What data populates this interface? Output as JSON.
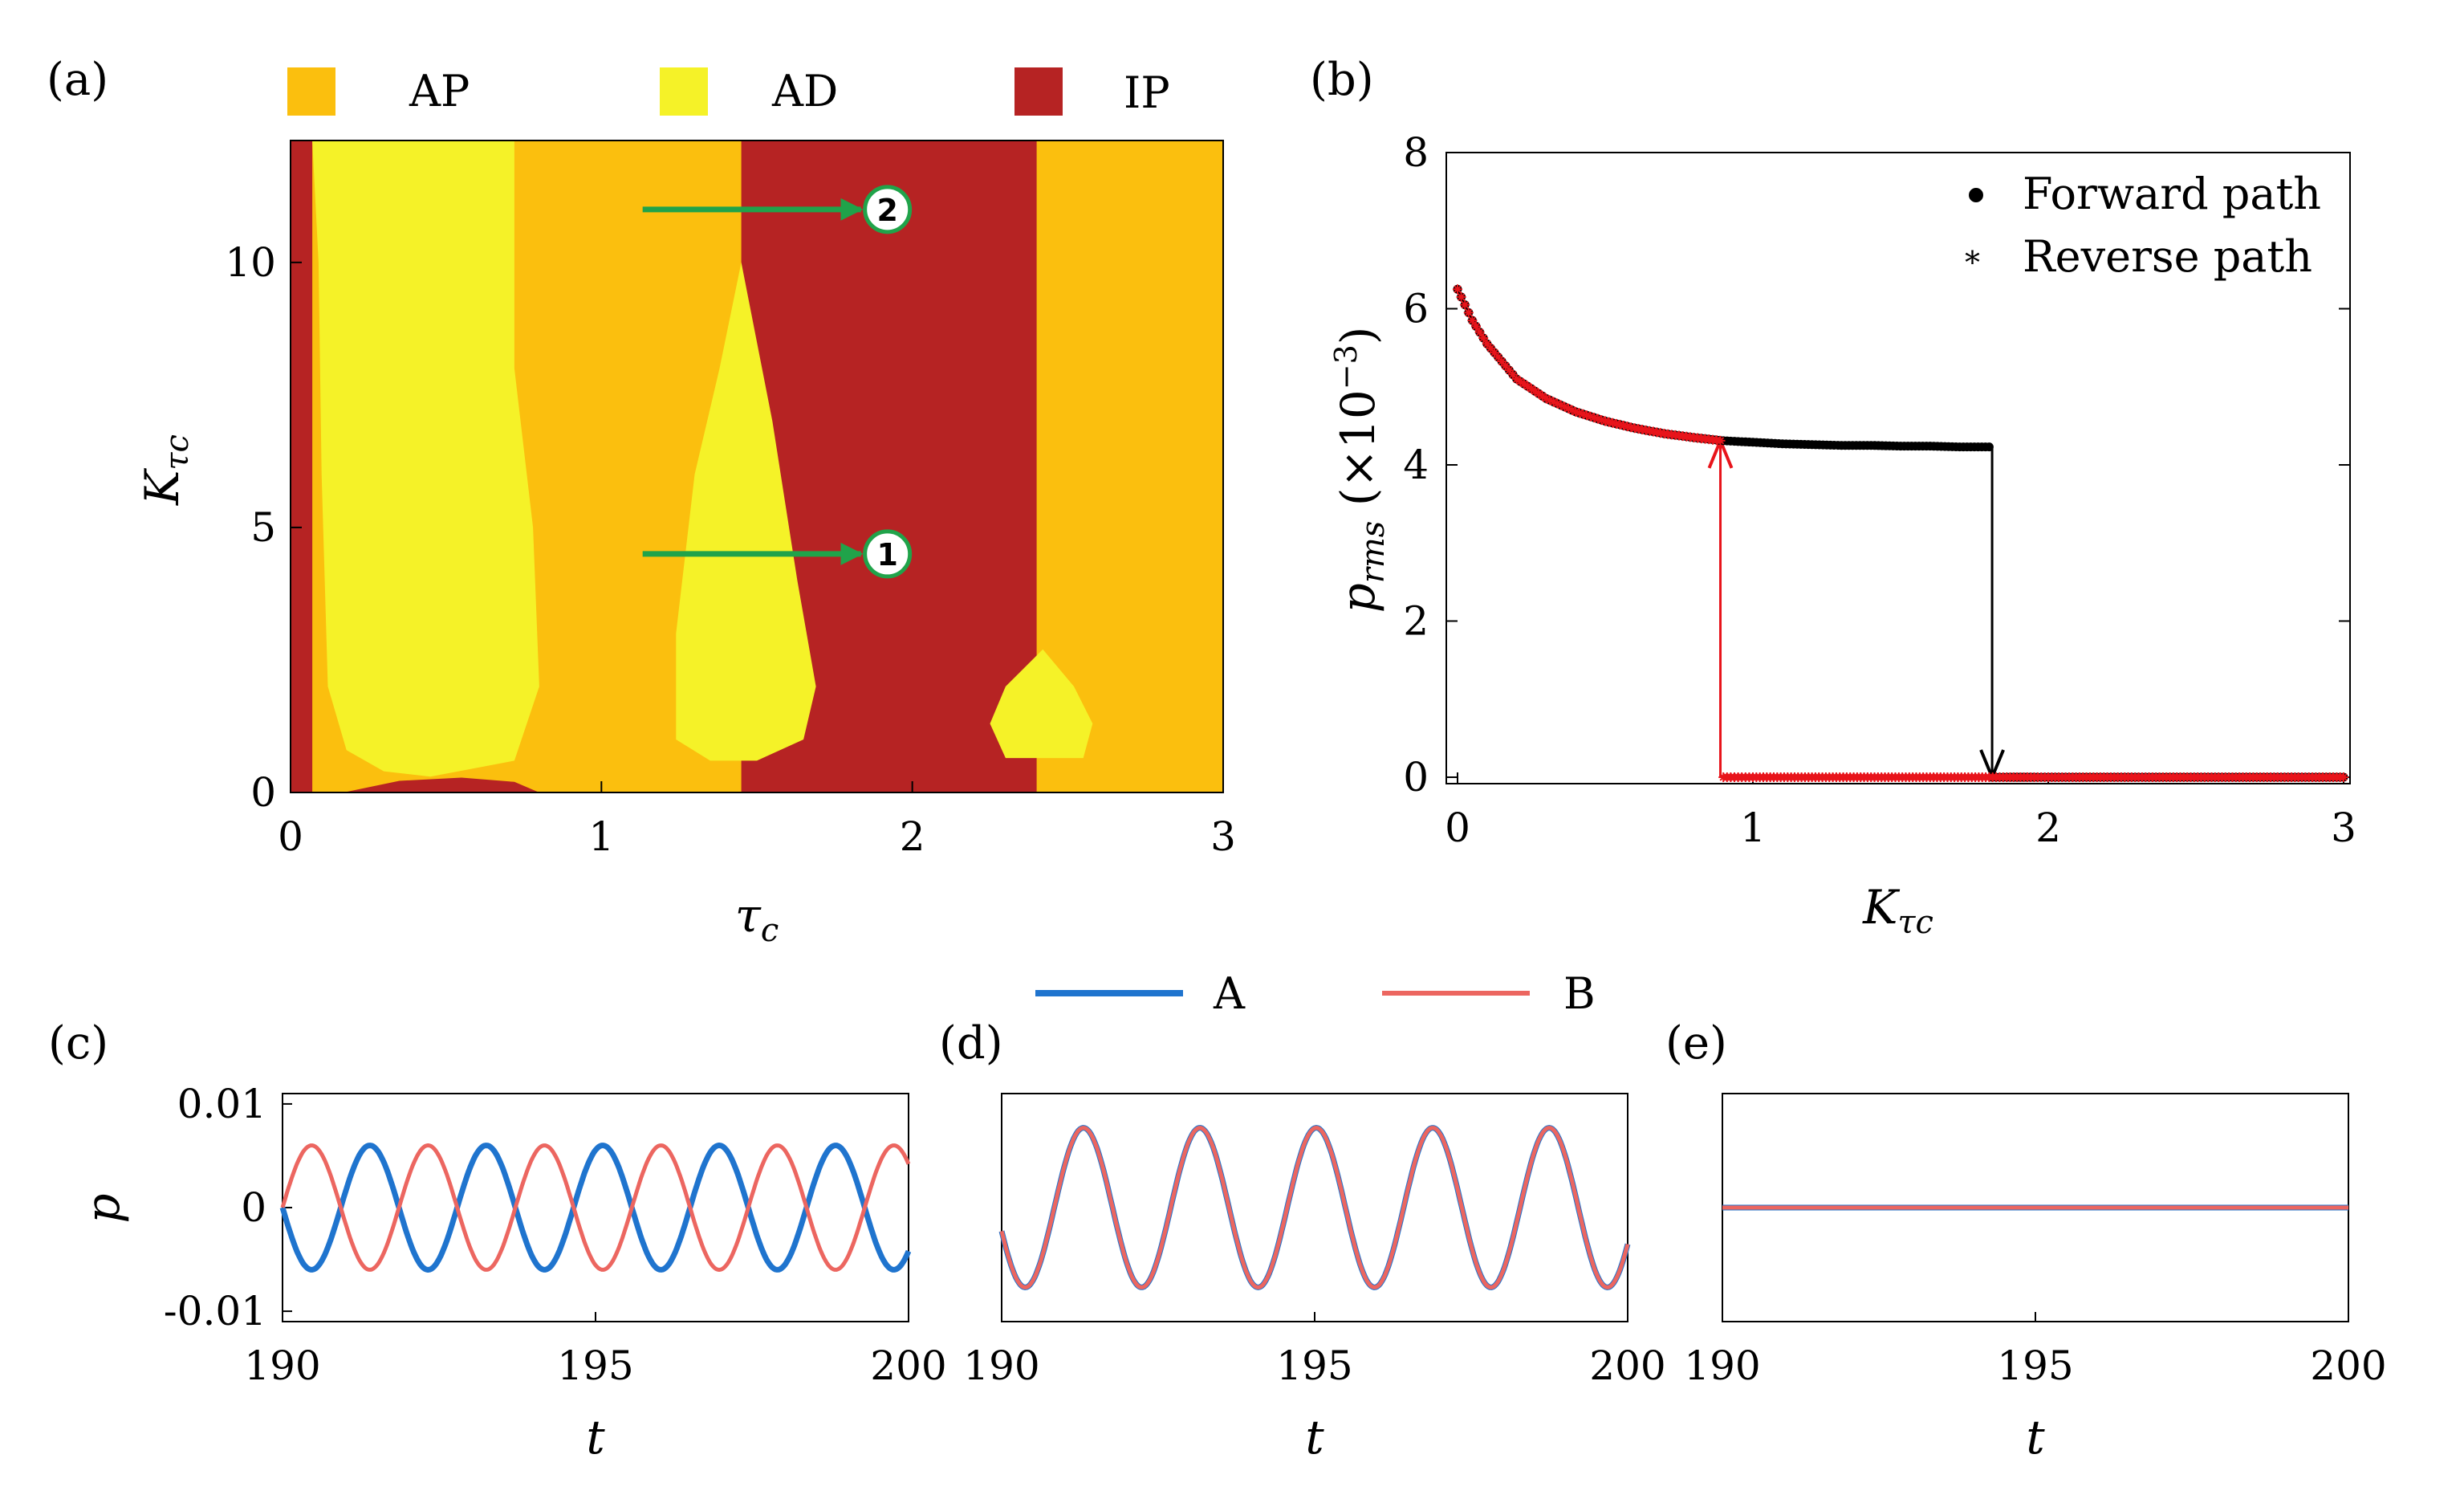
{
  "colors": {
    "AP": "#FBBF0E",
    "AD": "#F5F228",
    "IP": "#B62323",
    "arrow": "#20A34A",
    "forward": "#000000",
    "reverse": "#E8141B",
    "seriesA": "#1F74CE",
    "seriesB": "#EC6660"
  },
  "chart_data": [
    {
      "panel": "(a)",
      "type": "heatmap",
      "xlabel": "τc",
      "ylabel": "Kτc",
      "xlim": [
        0,
        3
      ],
      "ylim": [
        0,
        12.3
      ],
      "xticks": [
        "0",
        "1",
        "2",
        "3"
      ],
      "yticks": [
        "0",
        "5",
        "10"
      ],
      "legend": [
        {
          "key": "AP",
          "label": "AP"
        },
        {
          "key": "AD",
          "label": "AD"
        },
        {
          "key": "IP",
          "label": "IP"
        }
      ],
      "regions": [
        {
          "state": "IP",
          "boundary": [
            [
              0,
              0
            ],
            [
              0,
              12.3
            ],
            [
              0.07,
              12.3
            ],
            [
              0.07,
              0
            ]
          ]
        },
        {
          "state": "AD",
          "boundary": [
            [
              0.07,
              12.3
            ],
            [
              0.72,
              12.3
            ],
            [
              0.72,
              8
            ],
            [
              0.78,
              5
            ],
            [
              0.8,
              2
            ],
            [
              0.72,
              0.6
            ],
            [
              0.45,
              0.3
            ],
            [
              0.3,
              0.4
            ],
            [
              0.18,
              0.8
            ],
            [
              0.12,
              2
            ],
            [
              0.1,
              6
            ],
            [
              0.09,
              10
            ]
          ]
        },
        {
          "state": "IP",
          "boundary": [
            [
              1.45,
              12.3
            ],
            [
              2.4,
              12.3
            ],
            [
              2.4,
              0
            ],
            [
              1.45,
              0
            ]
          ]
        },
        {
          "state": "AD",
          "boundary": [
            [
              1.45,
              10
            ],
            [
              1.55,
              7
            ],
            [
              1.63,
              4
            ],
            [
              1.69,
              2
            ],
            [
              1.65,
              1
            ],
            [
              1.5,
              0.6
            ],
            [
              1.35,
              0.6
            ],
            [
              1.24,
              1
            ],
            [
              1.24,
              3
            ],
            [
              1.3,
              6
            ],
            [
              1.38,
              8
            ]
          ]
        },
        {
          "state": "AD",
          "boundary": [
            [
              2.42,
              2.7
            ],
            [
              2.52,
              2
            ],
            [
              2.58,
              1.3
            ],
            [
              2.55,
              0.65
            ],
            [
              2.3,
              0.65
            ],
            [
              2.25,
              1.3
            ],
            [
              2.3,
              2
            ]
          ]
        },
        {
          "state": "IP",
          "boundary": [
            [
              0.17,
              0
            ],
            [
              0.35,
              0.22
            ],
            [
              0.55,
              0.28
            ],
            [
              0.72,
              0.2
            ],
            [
              0.8,
              0
            ]
          ]
        }
      ],
      "annotations": [
        {
          "label": "1",
          "x": 1.92,
          "y": 4.5
        },
        {
          "label": "2",
          "x": 1.92,
          "y": 11
        }
      ]
    },
    {
      "panel": "(b)",
      "type": "scatter",
      "xlabel": "Kτc",
      "ylabel": "prms (×10−3)",
      "xlim": [
        0,
        3
      ],
      "ylim": [
        0,
        8
      ],
      "xticks": [
        "0",
        "1",
        "2",
        "3"
      ],
      "yticks": [
        "0",
        "2",
        "4",
        "6",
        "8"
      ],
      "legend_position": "top-right",
      "series": [
        {
          "name": "Forward path",
          "x": [
            0,
            0.05,
            0.1,
            0.2,
            0.3,
            0.4,
            0.5,
            0.6,
            0.7,
            0.8,
            0.9,
            1.0,
            1.1,
            1.2,
            1.3,
            1.4,
            1.5,
            1.6,
            1.7,
            1.8,
            1.81,
            1.9,
            2.0,
            2.2,
            2.4,
            2.6,
            2.8,
            3.0
          ],
          "y": [
            6.25,
            5.85,
            5.55,
            5.1,
            4.85,
            4.68,
            4.56,
            4.47,
            4.4,
            4.35,
            4.31,
            4.29,
            4.27,
            4.26,
            4.25,
            4.25,
            4.24,
            4.24,
            4.23,
            4.23,
            0,
            0,
            0,
            0,
            0,
            0,
            0,
            0
          ]
        },
        {
          "name": "Reverse path",
          "x": [
            3.0,
            2.8,
            2.6,
            2.4,
            2.2,
            2.0,
            1.8,
            1.6,
            1.4,
            1.2,
            1.0,
            0.9,
            0.89,
            0.8,
            0.7,
            0.6,
            0.5,
            0.4,
            0.3,
            0.2,
            0.1,
            0.05,
            0
          ],
          "y": [
            0,
            0,
            0,
            0,
            0,
            0,
            0,
            0,
            0,
            0,
            0,
            0,
            4.31,
            4.35,
            4.4,
            4.47,
            4.56,
            4.68,
            4.85,
            5.1,
            5.55,
            5.85,
            6.25
          ]
        }
      ],
      "transitions": [
        {
          "path": "Forward path",
          "x": 1.81,
          "from": 4.23,
          "to": 0
        },
        {
          "path": "Reverse path",
          "x": 0.89,
          "from": 0,
          "to": 4.31
        }
      ]
    },
    {
      "panel": "(c)",
      "type": "line",
      "xlabel": "t",
      "ylabel": "p",
      "xlim": [
        190,
        200
      ],
      "ylim": [
        -0.011,
        0.011
      ],
      "xticks": [
        "190",
        "195",
        "200"
      ],
      "yticks": [
        "0.01",
        "0",
        "-0.01"
      ],
      "period": 1.86,
      "series": [
        {
          "name": "A",
          "amplitude": 0.006,
          "phase_at_190": 0
        },
        {
          "name": "B",
          "amplitude": 0.006,
          "phase_at_190": 3.1416
        }
      ]
    },
    {
      "panel": "(d)",
      "type": "line",
      "xlabel": "t",
      "xlim": [
        190,
        200
      ],
      "ylim": [
        -0.011,
        0.011
      ],
      "xticks": [
        "190",
        "195",
        "200"
      ],
      "period": 1.86,
      "series": [
        {
          "name": "A",
          "amplitude": 0.0077,
          "phase_at_190": 0.3
        },
        {
          "name": "B",
          "amplitude": 0.0077,
          "phase_at_190": 0.3
        }
      ]
    },
    {
      "panel": "(e)",
      "type": "line",
      "xlabel": "t",
      "xlim": [
        190,
        200
      ],
      "ylim": [
        -0.011,
        0.011
      ],
      "xticks": [
        "190",
        "195",
        "200"
      ],
      "series": [
        {
          "name": "A",
          "constant": 0
        },
        {
          "name": "B",
          "constant": 0
        }
      ]
    }
  ],
  "shared_legend": [
    {
      "name": "A",
      "label": "A"
    },
    {
      "name": "B",
      "label": "B"
    }
  ]
}
